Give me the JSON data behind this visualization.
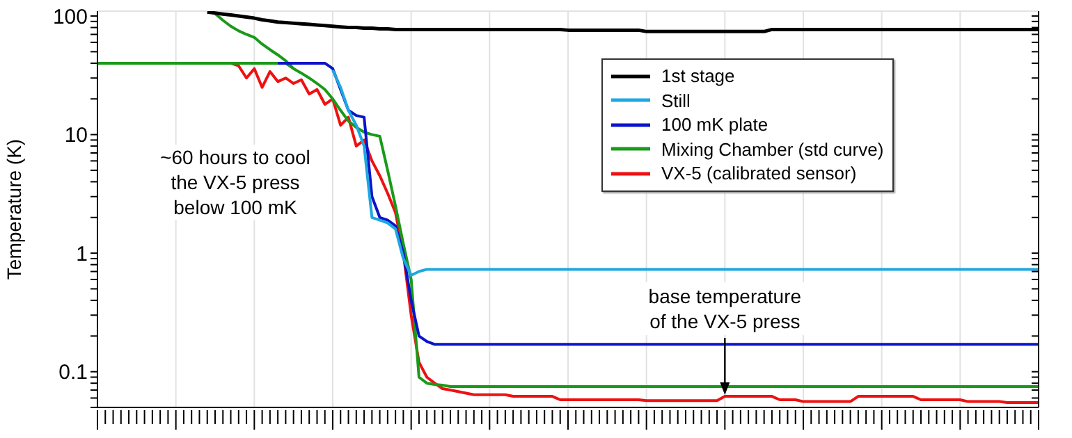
{
  "chart_data": {
    "type": "line",
    "ylabel": "Temperature (K)",
    "log": "y",
    "grid": true,
    "legend": "right",
    "tick_labels": "y",
    "marker": "none",
    "line_style": "solid",
    "categories": [
      null,
      null,
      null,
      null,
      null,
      null,
      null,
      null,
      null,
      null,
      null,
      null,
      null,
      null,
      null,
      null,
      null,
      null,
      null,
      null,
      null,
      null,
      null,
      null,
      null,
      null,
      null,
      null,
      null,
      null,
      null,
      null,
      null,
      null,
      null,
      null,
      null,
      null,
      null,
      null,
      null,
      null,
      null,
      null,
      null,
      null,
      null,
      null,
      null,
      null,
      null,
      null,
      null,
      null,
      null,
      null,
      null,
      null,
      null,
      null,
      null,
      null,
      null,
      null,
      null,
      null,
      null,
      null,
      null,
      null,
      null,
      null,
      null,
      null,
      null,
      null,
      null,
      null,
      null,
      null,
      null,
      null,
      null,
      null,
      null,
      null,
      null,
      null,
      null,
      null,
      null,
      null,
      null,
      null,
      null,
      null,
      null,
      null,
      null,
      null,
      null,
      null,
      null,
      null,
      null,
      null,
      null,
      null,
      null,
      null,
      null,
      null,
      null,
      null,
      null,
      null,
      null,
      null,
      null,
      null,
      null
    ],
    "ylim": [
      0.05,
      110
    ],
    "yticks": [
      {
        "value": 0.05,
        "label": null
      },
      {
        "value": 0.06,
        "label": null
      },
      {
        "value": 0.07,
        "label": null
      },
      {
        "value": 0.08,
        "label": null
      },
      {
        "value": 0.09,
        "label": null
      },
      0.1,
      {
        "value": 0.2,
        "label": null
      },
      {
        "value": 0.3,
        "label": null
      },
      {
        "value": 0.4,
        "label": null
      },
      {
        "value": 0.5,
        "label": null
      },
      {
        "value": 0.6,
        "label": null
      },
      {
        "value": 0.7,
        "label": null
      },
      {
        "value": 0.8,
        "label": null
      },
      {
        "value": 0.9,
        "label": null
      },
      1,
      {
        "value": 2,
        "label": null
      },
      {
        "value": 3,
        "label": null
      },
      {
        "value": 4,
        "label": null
      },
      {
        "value": 5,
        "label": null
      },
      {
        "value": 6,
        "label": null
      },
      {
        "value": 7,
        "label": null
      },
      {
        "value": 8,
        "label": null
      },
      {
        "value": 9,
        "label": null
      },
      10,
      {
        "value": 20,
        "label": null
      },
      {
        "value": 30,
        "label": null
      },
      {
        "value": 40,
        "label": null
      },
      {
        "value": 50,
        "label": null
      },
      {
        "value": 60,
        "label": null
      },
      {
        "value": 70,
        "label": null
      },
      {
        "value": 80,
        "label": null
      },
      {
        "value": 90,
        "label": null
      },
      100
    ],
    "series": [
      {
        "name": "1st stage",
        "color": "#000000",
        "values": [
          null,
          null,
          null,
          null,
          null,
          null,
          null,
          null,
          null,
          null,
          null,
          null,
          null,
          null,
          108,
          106,
          104,
          102,
          100,
          98,
          96,
          93,
          91,
          89,
          88,
          87,
          86,
          85,
          84,
          83,
          82,
          81,
          80,
          80,
          79,
          79,
          78,
          78,
          77,
          77,
          77,
          77,
          77,
          77,
          77,
          77,
          77,
          77,
          77,
          77,
          77,
          77,
          77,
          77,
          77,
          77,
          77,
          77,
          77,
          77,
          76,
          76,
          76,
          76,
          76,
          76,
          76,
          76,
          76,
          76,
          74,
          74,
          74,
          74,
          74,
          74,
          74,
          74,
          74,
          74,
          74,
          74,
          74,
          74,
          74,
          74,
          77,
          77,
          77,
          77,
          77,
          77,
          77,
          77,
          77,
          77,
          77,
          77,
          77,
          77,
          77,
          77,
          77,
          77,
          77,
          77,
          77,
          77,
          77,
          77,
          77,
          77,
          77,
          77,
          77,
          77,
          77,
          77,
          77,
          77,
          77
        ]
      },
      {
        "name": "Still",
        "color": "#1ea7e1",
        "values": [
          null,
          null,
          null,
          null,
          null,
          null,
          null,
          null,
          null,
          null,
          null,
          null,
          null,
          null,
          null,
          null,
          null,
          null,
          null,
          null,
          null,
          null,
          null,
          null,
          null,
          null,
          null,
          null,
          null,
          null,
          35,
          25,
          16,
          12,
          8,
          2,
          1.9,
          1.8,
          1.6,
          0.9,
          0.65,
          0.7,
          0.73,
          0.73,
          0.73,
          0.73,
          0.73,
          0.73,
          0.73,
          0.73,
          0.73,
          0.73,
          0.73,
          0.73,
          0.73,
          0.73,
          0.73,
          0.73,
          0.73,
          0.73,
          0.73,
          0.73,
          0.73,
          0.73,
          0.73,
          0.73,
          0.73,
          0.73,
          0.73,
          0.73,
          0.73,
          0.73,
          0.73,
          0.73,
          0.73,
          0.73,
          0.73,
          0.73,
          0.73,
          0.73,
          0.73,
          0.73,
          0.73,
          0.73,
          0.73,
          0.73,
          0.73,
          0.73,
          0.73,
          0.73,
          0.73,
          0.73,
          0.73,
          0.73,
          0.73,
          0.73,
          0.73,
          0.73,
          0.73,
          0.73,
          0.73,
          0.73,
          0.73,
          0.73,
          0.73,
          0.73,
          0.73,
          0.73,
          0.73,
          0.73,
          0.73,
          0.73,
          0.73,
          0.73,
          0.73,
          0.73,
          0.73,
          0.73,
          0.73,
          0.73,
          0.73
        ]
      },
      {
        "name": "100 mK plate",
        "color": "#0a14c8",
        "values": [
          null,
          null,
          null,
          null,
          null,
          null,
          null,
          null,
          null,
          null,
          null,
          null,
          null,
          null,
          null,
          null,
          null,
          null,
          null,
          null,
          null,
          null,
          null,
          40,
          40,
          40,
          40,
          40,
          40,
          40,
          36,
          24,
          16,
          14.5,
          14,
          3,
          2,
          1.9,
          1.7,
          1,
          0.4,
          0.2,
          0.18,
          0.17,
          0.17,
          0.17,
          0.17,
          0.17,
          0.17,
          0.17,
          0.17,
          0.17,
          0.17,
          0.17,
          0.17,
          0.17,
          0.17,
          0.17,
          0.17,
          0.17,
          0.17,
          0.17,
          0.17,
          0.17,
          0.17,
          0.17,
          0.17,
          0.17,
          0.17,
          0.17,
          0.17,
          0.17,
          0.17,
          0.17,
          0.17,
          0.17,
          0.17,
          0.17,
          0.17,
          0.17,
          0.17,
          0.17,
          0.17,
          0.17,
          0.17,
          0.17,
          0.17,
          0.17,
          0.17,
          0.17,
          0.17,
          0.17,
          0.17,
          0.17,
          0.17,
          0.17,
          0.17,
          0.17,
          0.17,
          0.17,
          0.17,
          0.17,
          0.17,
          0.17,
          0.17,
          0.17,
          0.17,
          0.17,
          0.17,
          0.17,
          0.17,
          0.17,
          0.17,
          0.17,
          0.17,
          0.17,
          0.17,
          0.17,
          0.17,
          0.17,
          0.17
        ]
      },
      {
        "name": "Mixing Chamber (std curve)",
        "color": "#1a9a1a",
        "values": [
          40,
          40,
          40,
          40,
          40,
          40,
          40,
          40,
          40,
          40,
          40,
          40,
          40,
          40,
          40,
          40,
          40,
          40,
          40,
          40,
          40,
          40,
          40,
          40,
          40,
          36,
          33,
          30,
          27,
          24,
          20,
          16,
          13,
          11.5,
          10.5,
          10,
          9.7,
          5,
          2.5,
          1.2,
          0.6,
          0.09,
          0.08,
          0.078,
          0.077,
          0.075,
          0.075,
          0.075,
          0.075,
          0.075,
          0.075,
          0.075,
          0.075,
          0.075,
          0.075,
          0.075,
          0.075,
          0.075,
          0.075,
          0.075,
          0.075,
          0.075,
          0.075,
          0.075,
          0.075,
          0.075,
          0.075,
          0.075,
          0.075,
          0.075,
          0.075,
          0.075,
          0.075,
          0.075,
          0.075,
          0.075,
          0.075,
          0.075,
          0.075,
          0.075,
          0.075,
          0.075,
          0.075,
          0.075,
          0.075,
          0.075,
          0.075,
          0.075,
          0.075,
          0.075,
          0.075,
          0.075,
          0.075,
          0.075,
          0.075,
          0.075,
          0.075,
          0.075,
          0.075,
          0.075,
          0.075,
          0.075,
          0.075,
          0.075,
          0.075,
          0.075,
          0.075,
          0.075,
          0.075,
          0.075,
          0.075,
          0.075,
          0.075,
          0.075,
          0.075,
          0.075,
          0.075,
          0.075,
          0.075,
          0.075,
          0.075
        ]
      },
      {
        "color": "#1a9a1a",
        "values": [
          null,
          null,
          null,
          null,
          null,
          null,
          null,
          null,
          null,
          null,
          null,
          null,
          null,
          null,
          null,
          105,
          92,
          82,
          75,
          70,
          66,
          58,
          52,
          47,
          42,
          36,
          null,
          null,
          null,
          null,
          null,
          null,
          null,
          null,
          null,
          null,
          null,
          null,
          null,
          null,
          null,
          null,
          null,
          null,
          null,
          null,
          null,
          null,
          null,
          null,
          null,
          null,
          null,
          null,
          null,
          null,
          null,
          null,
          null,
          null,
          null,
          null,
          null,
          null,
          null,
          null,
          null,
          null,
          null,
          null,
          null,
          null,
          null,
          null,
          null,
          null,
          null,
          null,
          null,
          null,
          null,
          null,
          null,
          null,
          null,
          null,
          null,
          null,
          null,
          null,
          null,
          null,
          null,
          null,
          null,
          null,
          null,
          null,
          null,
          null,
          null,
          null,
          null,
          null,
          null,
          null,
          null,
          null,
          null,
          null,
          null,
          null,
          null,
          null,
          null,
          null,
          null,
          null,
          null,
          null,
          null
        ]
      },
      {
        "name": "VX-5 (calibrated sensor)",
        "color": "#ee1111",
        "values": [
          null,
          null,
          null,
          null,
          null,
          null,
          null,
          null,
          null,
          null,
          null,
          null,
          null,
          null,
          null,
          null,
          null,
          40,
          38,
          30,
          36,
          25,
          34,
          28,
          30,
          27,
          29,
          22,
          24,
          18,
          20,
          12,
          14,
          8,
          9,
          6,
          4.5,
          3.2,
          2.2,
          1,
          0.3,
          0.12,
          0.09,
          0.08,
          0.072,
          0.07,
          0.068,
          0.066,
          0.064,
          0.064,
          0.064,
          0.064,
          0.064,
          0.062,
          0.062,
          0.062,
          0.062,
          0.062,
          0.062,
          0.058,
          0.058,
          0.058,
          0.058,
          0.058,
          0.058,
          0.058,
          0.058,
          0.058,
          0.058,
          0.058,
          0.057,
          0.057,
          0.057,
          0.057,
          0.057,
          0.057,
          0.057,
          0.057,
          0.057,
          0.057,
          0.062,
          0.062,
          0.062,
          0.062,
          0.062,
          0.062,
          0.062,
          0.058,
          0.058,
          0.058,
          0.056,
          0.056,
          0.056,
          0.056,
          0.056,
          0.056,
          0.056,
          0.062,
          0.062,
          0.062,
          0.062,
          0.062,
          0.062,
          0.062,
          0.062,
          0.058,
          0.058,
          0.058,
          0.058,
          0.058,
          0.058,
          0.056,
          0.056,
          0.056,
          0.056,
          0.056,
          0.055,
          0.055,
          0.055,
          0.055,
          0.055
        ]
      }
    ],
    "annotations": [
      "~60 hours to cool the VX-5 press below 100 mK",
      {
        "text": "base temperature of the VX-5 press",
        "y": 0.062
      }
    ]
  }
}
